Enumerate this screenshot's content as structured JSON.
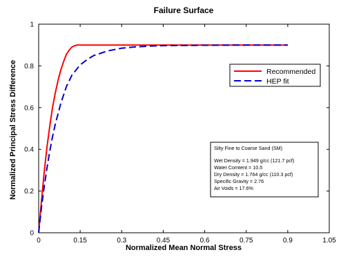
{
  "chart_data": {
    "type": "line",
    "title": "Failure Surface",
    "xlabel": "Normalized Mean Normal Stress",
    "ylabel": "Normalized Principal Stress Difference",
    "xlim": [
      0,
      1.05
    ],
    "ylim": [
      0,
      1
    ],
    "x_ticks": [
      0,
      0.15,
      0.3,
      0.45,
      0.6,
      0.75,
      0.9,
      1.05
    ],
    "x_tick_labels": [
      "0",
      "0.15",
      "0.3",
      "0.45",
      "0.6",
      "0.75",
      "0.9",
      "1.05"
    ],
    "y_ticks": [
      0,
      0.2,
      0.4,
      0.6,
      0.8,
      1
    ],
    "y_tick_labels": [
      "0",
      "0.2",
      "0.4",
      "0.6",
      "0.8",
      "1"
    ],
    "grid": false,
    "legend_position": "upper-right",
    "series": [
      {
        "name": "Recommended",
        "color": "#ff0000",
        "dash": "solid",
        "x": [
          0,
          0.01,
          0.02,
          0.03,
          0.04,
          0.05,
          0.06,
          0.07,
          0.08,
          0.09,
          0.1,
          0.11,
          0.12,
          0.13,
          0.14,
          0.15,
          0.2,
          0.3,
          0.45,
          0.6,
          0.75,
          0.9
        ],
        "y": [
          0,
          0.15,
          0.29,
          0.41,
          0.51,
          0.6,
          0.67,
          0.73,
          0.78,
          0.82,
          0.855,
          0.875,
          0.89,
          0.897,
          0.9,
          0.9,
          0.9,
          0.9,
          0.9,
          0.9,
          0.9,
          0.9
        ]
      },
      {
        "name": "HEP fit",
        "color": "#0000cc",
        "dash": "dashed",
        "x": [
          0,
          0.01,
          0.02,
          0.03,
          0.04,
          0.05,
          0.06,
          0.08,
          0.1,
          0.12,
          0.15,
          0.18,
          0.2,
          0.25,
          0.3,
          0.35,
          0.4,
          0.45,
          0.6,
          0.75,
          0.9
        ],
        "y": [
          0,
          0.12,
          0.22,
          0.31,
          0.39,
          0.46,
          0.52,
          0.62,
          0.7,
          0.755,
          0.805,
          0.835,
          0.85,
          0.872,
          0.885,
          0.891,
          0.895,
          0.897,
          0.899,
          0.9,
          0.9
        ]
      }
    ],
    "annotation": {
      "title": "Silty Fine to Coarse Sand (SM)",
      "lines": [
        "Wet Density = 1.949 g/cc (121.7 pcf)",
        "Water Comtent = 10.5",
        "Dry Density = 1.764 g/cc (110.3 pcf)",
        "Specific Gravity = 2.76",
        "Air Voids = 17.6%"
      ]
    }
  }
}
